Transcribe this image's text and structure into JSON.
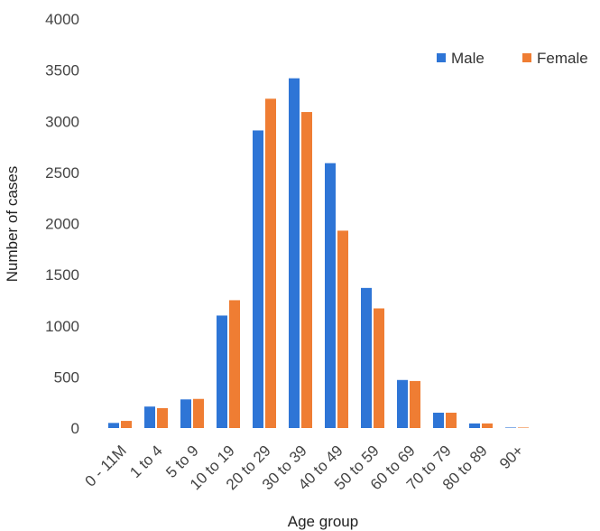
{
  "chart_data": {
    "type": "bar",
    "categories": [
      "0 - 11M",
      "1 to 4",
      "5 to 9",
      "10 to 19",
      "20 to 29",
      "30 to 39",
      "40 to 49",
      "50 to 59",
      "60 to 69",
      "70 to 79",
      "80 to 89",
      "90+"
    ],
    "series": [
      {
        "name": "Male",
        "color": "#2e75d6",
        "values": [
          50,
          210,
          280,
          1100,
          2910,
          3420,
          2590,
          1370,
          470,
          150,
          45,
          5
        ]
      },
      {
        "name": "Female",
        "color": "#ef7d33",
        "values": [
          70,
          195,
          285,
          1250,
          3220,
          3090,
          1930,
          1170,
          460,
          150,
          45,
          5
        ]
      }
    ],
    "xlabel": "Age group",
    "ylabel": "Number of cases",
    "ylim": [
      0,
      4000
    ],
    "yticks": [
      0,
      500,
      1000,
      1500,
      2000,
      2500,
      3000,
      3500,
      4000
    ],
    "grid": false,
    "legend_position": "top-right"
  }
}
